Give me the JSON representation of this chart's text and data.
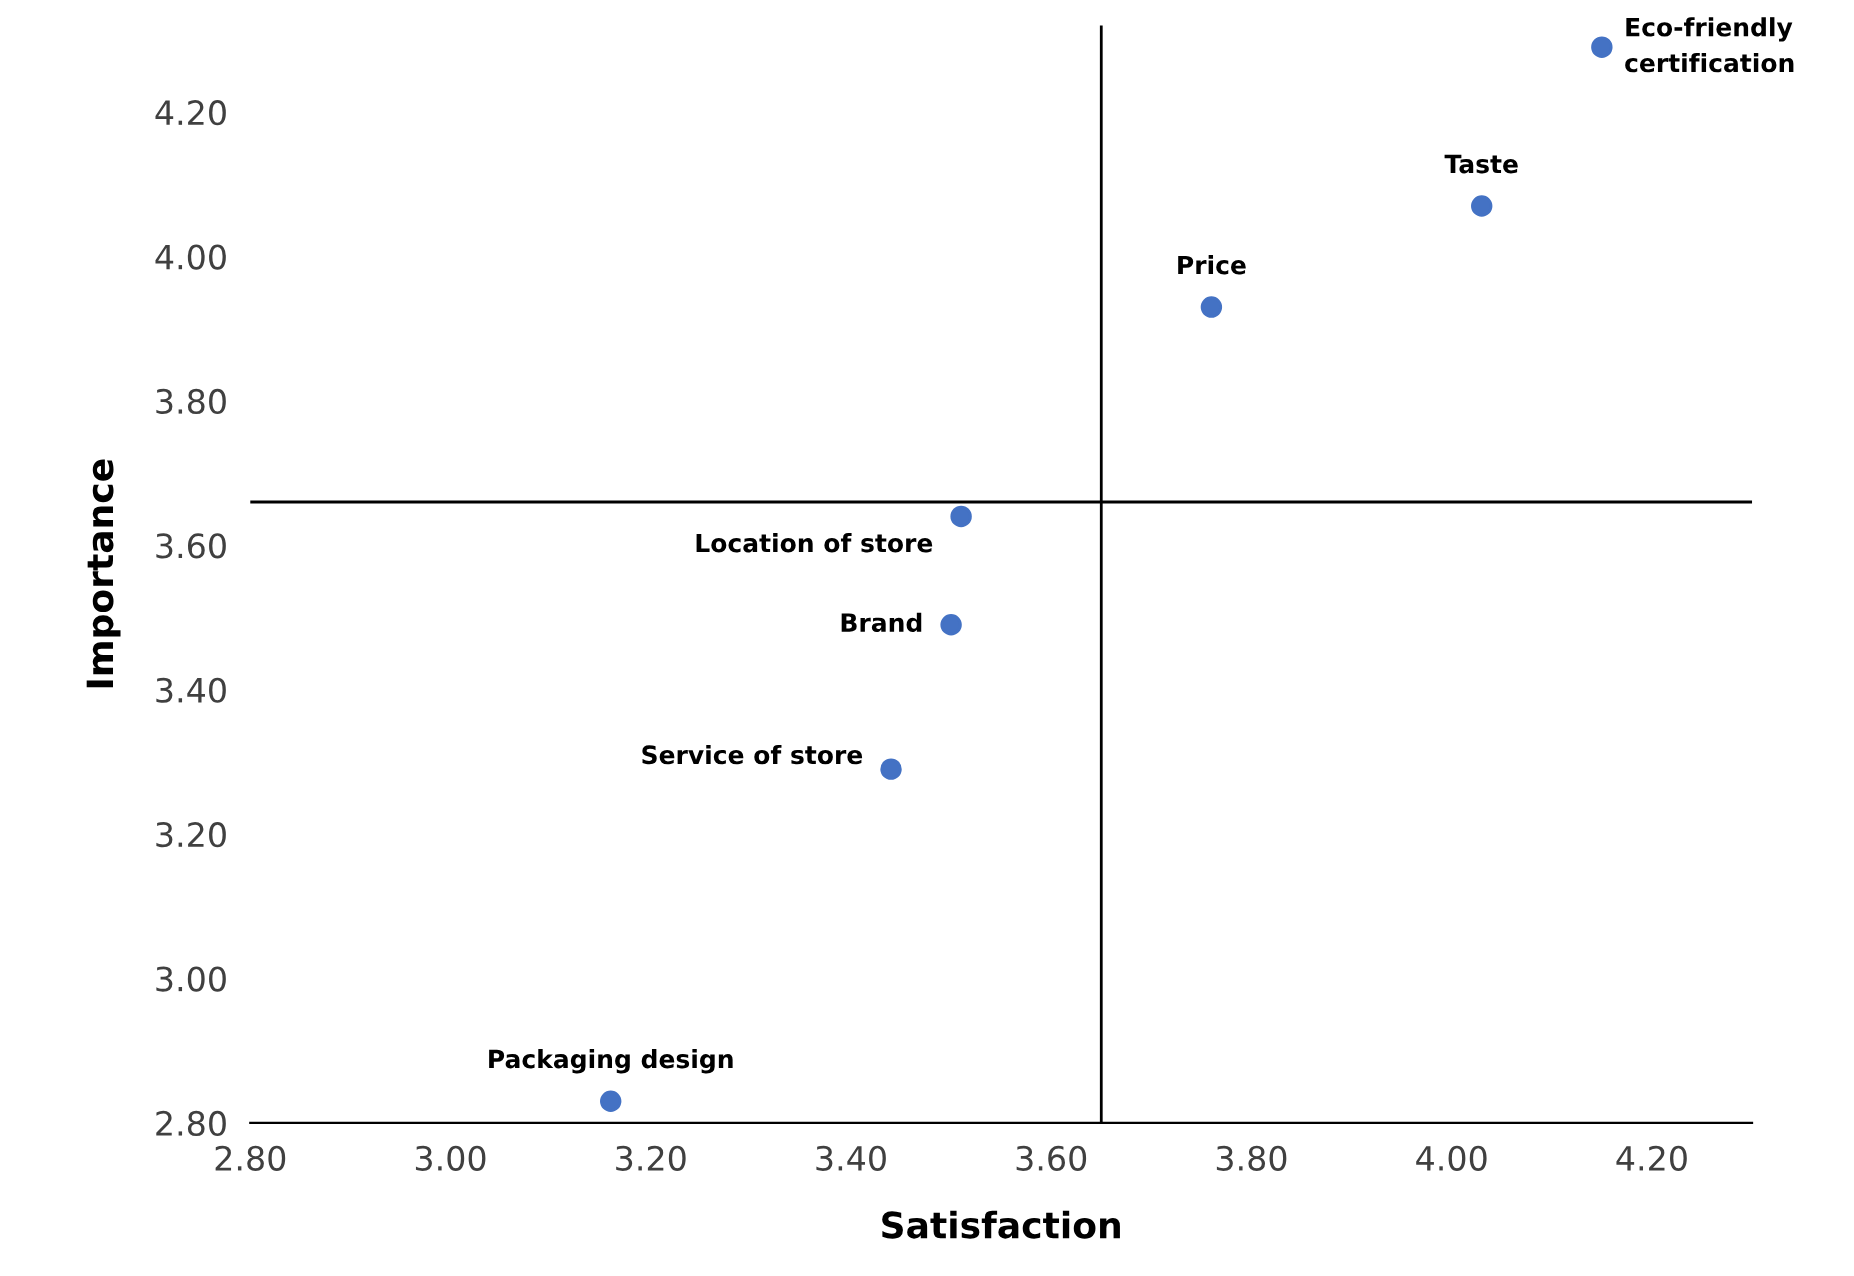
{
  "chart_data": {
    "type": "scatter",
    "xlabel": "Satisfaction",
    "ylabel": "Importance",
    "series": [
      {
        "color": "#4472c4",
        "x": [
          4.15,
          4.03,
          3.76,
          3.51,
          3.5,
          3.44,
          3.16
        ],
        "values": [
          4.29,
          4.07,
          3.93,
          3.64,
          3.49,
          3.29,
          2.83
        ]
      }
    ],
    "marker": "circle",
    "annotations": [
      {
        "text": "Eco-friendly\ncertification",
        "x": 4.15,
        "y": 4.29
      },
      {
        "text": "Taste",
        "x": 4.03,
        "y": 4.07
      },
      {
        "text": "Price",
        "x": 3.76,
        "y": 3.93
      },
      {
        "text": "Location of store",
        "x": 3.51,
        "y": 3.64
      },
      {
        "text": "Brand",
        "x": 3.5,
        "y": 3.49
      },
      {
        "text": "Service of store",
        "x": 3.44,
        "y": 3.29
      },
      {
        "text": "Packaging design",
        "x": 3.16,
        "y": 2.83
      }
    ],
    "ref_lines": [
      {
        "axis": "x",
        "value": 3.65,
        "color": "#000000"
      },
      {
        "axis": "y",
        "value": 3.66,
        "color": "#000000"
      }
    ],
    "xlim": [
      2.8,
      4.3
    ],
    "ylim": [
      2.8,
      4.32
    ],
    "xticks": [
      {
        "value": 2.8,
        "label": "2.80"
      },
      {
        "value": 3.0,
        "label": "3.00"
      },
      {
        "value": 3.2,
        "label": "3.20"
      },
      {
        "value": 3.4,
        "label": "3.40"
      },
      {
        "value": 3.6,
        "label": "3.60"
      },
      {
        "value": 3.8,
        "label": "3.80"
      },
      {
        "value": 4.0,
        "label": "4.00"
      },
      {
        "value": 4.2,
        "label": "4.20"
      }
    ],
    "yticks": [
      {
        "value": 2.8,
        "label": "2.80"
      },
      {
        "value": 3.0,
        "label": "3.00"
      },
      {
        "value": 3.2,
        "label": "3.20"
      },
      {
        "value": 3.4,
        "label": "3.40"
      },
      {
        "value": 3.6,
        "label": "3.60"
      },
      {
        "value": 3.8,
        "label": "3.80"
      },
      {
        "value": 4.0,
        "label": "4.00"
      },
      {
        "value": 4.2,
        "label": "4.20"
      }
    ],
    "grid": false,
    "legend": false
  }
}
